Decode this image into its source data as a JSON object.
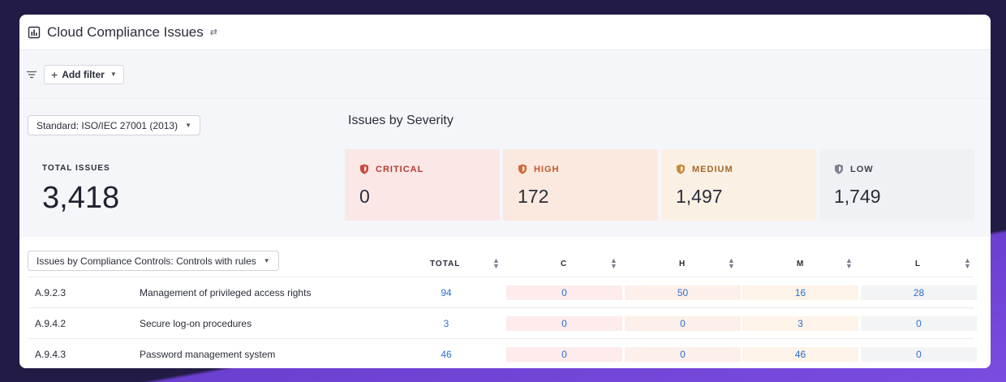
{
  "header": {
    "title": "Cloud Compliance Issues",
    "title_icon": "bar-chart-icon",
    "swap_icon": "swap-icon"
  },
  "filters": {
    "add_filter_label": "Add filter"
  },
  "standard": {
    "selected": "Standard: ISO/IEC 27001 (2013)"
  },
  "summary": {
    "total_label": "TOTAL ISSUES",
    "total_value": "3,418",
    "severity_title": "Issues by Severity",
    "severities": [
      {
        "label": "CRITICAL",
        "value": "0",
        "color": "#b93a32"
      },
      {
        "label": "HIGH",
        "value": "172",
        "color": "#c0582f"
      },
      {
        "label": "MEDIUM",
        "value": "1,497",
        "color": "#a5662a"
      },
      {
        "label": "LOW",
        "value": "1,749",
        "color": "#3a3f4f"
      }
    ]
  },
  "controls_table": {
    "selector_label": "Issues by Compliance Controls: Controls with rules",
    "columns": [
      "TOTAL",
      "C",
      "H",
      "M",
      "L"
    ],
    "rows": [
      {
        "id": "A.9.2.3",
        "name": "Management of privileged access rights",
        "total": "94",
        "c": "0",
        "h": "50",
        "m": "16",
        "l": "28"
      },
      {
        "id": "A.9.4.2",
        "name": "Secure log-on procedures",
        "total": "3",
        "c": "0",
        "h": "0",
        "m": "3",
        "l": "0"
      },
      {
        "id": "A.9.4.3",
        "name": "Password management system",
        "total": "46",
        "c": "0",
        "h": "0",
        "m": "46",
        "l": "0"
      }
    ]
  },
  "colors": {
    "accent_link": "#2f6fcf",
    "background": "#221b45",
    "purple_band": "#7a4de0"
  }
}
